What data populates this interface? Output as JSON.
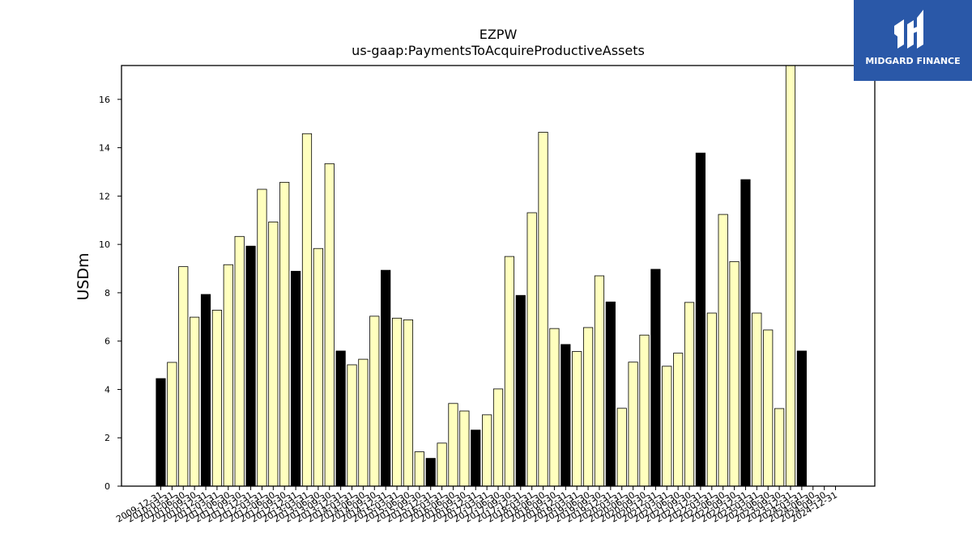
{
  "chart_data": {
    "type": "bar",
    "title": "EZPW",
    "subtitle": "us-gaap:PaymentsToAcquireProductiveAssets",
    "xlabel": "",
    "ylabel": "USDm",
    "ylim": [
      0,
      17.4
    ],
    "yticks": [
      0,
      2,
      4,
      6,
      8,
      10,
      12,
      14,
      16
    ],
    "grid": false,
    "colors": {
      "annual": "#000000",
      "quarterly": "#ffffbe",
      "edge": "#000000"
    },
    "categories": [
      "2009-12-31",
      "2010-03-31",
      "2010-06-30",
      "2010-09-30",
      "2010-12-31",
      "2011-03-31",
      "2011-06-30",
      "2011-09-30",
      "2011-12-31",
      "2012-03-31",
      "2012-06-30",
      "2012-09-30",
      "2012-12-31",
      "2013-03-31",
      "2013-06-30",
      "2013-09-30",
      "2013-12-31",
      "2014-03-31",
      "2014-06-30",
      "2014-09-30",
      "2014-12-31",
      "2015-03-31",
      "2015-06-30",
      "2015-09-30",
      "2015-12-31",
      "2016-03-31",
      "2016-06-30",
      "2016-09-30",
      "2016-12-31",
      "2017-03-31",
      "2017-06-30",
      "2017-09-30",
      "2017-12-31",
      "2018-03-31",
      "2018-06-30",
      "2018-09-30",
      "2018-12-31",
      "2019-03-31",
      "2019-06-30",
      "2019-09-30",
      "2019-12-31",
      "2020-03-31",
      "2020-06-30",
      "2020-09-30",
      "2020-12-31",
      "2021-03-31",
      "2021-06-30",
      "2021-09-30",
      "2021-12-31",
      "2022-03-31",
      "2022-06-30",
      "2022-09-30",
      "2022-12-31",
      "2023-03-31",
      "2023-06-30",
      "2023-09-30",
      "2023-12-31",
      "2024-03-31",
      "2024-06-30",
      "2024-09-30",
      "2024-12-31"
    ],
    "values": [
      4.45,
      5.12,
      9.08,
      6.99,
      7.93,
      7.28,
      9.16,
      10.33,
      9.93,
      12.28,
      10.93,
      12.57,
      8.89,
      14.58,
      9.83,
      13.34,
      5.59,
      5.02,
      5.25,
      7.03,
      8.93,
      6.95,
      6.88,
      1.42,
      1.15,
      1.78,
      3.42,
      3.11,
      2.32,
      2.95,
      4.02,
      9.5,
      7.89,
      11.31,
      14.64,
      6.52,
      5.86,
      5.57,
      6.56,
      8.7,
      7.62,
      3.22,
      5.13,
      6.25,
      8.97,
      4.96,
      5.5,
      7.6,
      13.78,
      7.16,
      11.24,
      9.29,
      12.68,
      7.16,
      6.46,
      3.21,
      17.4,
      5.59,
      0,
      0,
      0
    ],
    "annual_flags": [
      1,
      0,
      0,
      0,
      1,
      0,
      0,
      0,
      1,
      0,
      0,
      0,
      1,
      0,
      0,
      0,
      1,
      0,
      0,
      0,
      1,
      0,
      0,
      0,
      1,
      0,
      0,
      0,
      1,
      0,
      0,
      0,
      1,
      0,
      0,
      0,
      1,
      0,
      0,
      0,
      1,
      0,
      0,
      0,
      1,
      0,
      0,
      0,
      1,
      0,
      0,
      0,
      1,
      0,
      0,
      0,
      0,
      1,
      0,
      0,
      0
    ]
  },
  "logo": {
    "name": "MIDGARD FINANCE",
    "icon": "midgard-logo-icon"
  }
}
